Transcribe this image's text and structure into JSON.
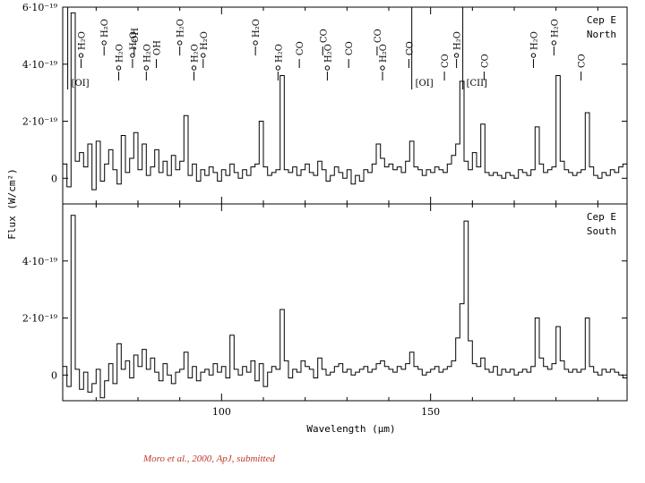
{
  "chart_data": [
    {
      "type": "line",
      "panel": "top",
      "label_lines": [
        "Cep E",
        "North"
      ],
      "xlabel": "Wavelength (μm)",
      "ylabel": "Flux (W/cm²)",
      "xlim": [
        62,
        197
      ],
      "ylim": [
        -9e-20,
        6e-19
      ],
      "yticks": [
        {
          "v": 0,
          "t": "0"
        },
        {
          "v": 2e-19,
          "t": "2·10⁻¹⁹"
        },
        {
          "v": 4e-19,
          "t": "4·10⁻¹⁹"
        },
        {
          "v": 6e-19,
          "t": "6·10⁻¹⁹"
        }
      ],
      "grid": false,
      "line_ids": [
        {
          "x": 63.2,
          "text": "[OI]",
          "kind": "bracket"
        },
        {
          "x": 66.4,
          "text": "H₂O",
          "kind": "o"
        },
        {
          "x": 71.9,
          "text": "H₂O",
          "kind": "o"
        },
        {
          "x": 75.4,
          "text": "H₂O",
          "kind": "o"
        },
        {
          "x": 78.7,
          "text": "H₂O",
          "kind": "o"
        },
        {
          "x": 79.1,
          "text": "OH",
          "kind": "tick"
        },
        {
          "x": 82.0,
          "text": "H₂O",
          "kind": "o"
        },
        {
          "x": 84.4,
          "text": "OH",
          "kind": "tick"
        },
        {
          "x": 90.0,
          "text": "H₂O",
          "kind": "o"
        },
        {
          "x": 93.4,
          "text": "H₂O",
          "kind": "o"
        },
        {
          "x": 95.6,
          "text": "H₂O",
          "kind": "o"
        },
        {
          "x": 108.1,
          "text": "H₂O",
          "kind": "o"
        },
        {
          "x": 113.5,
          "text": "H₂O",
          "kind": "o"
        },
        {
          "x": 118.6,
          "text": "CO",
          "kind": "tick"
        },
        {
          "x": 124.2,
          "text": "CO",
          "kind": "tick"
        },
        {
          "x": 125.3,
          "text": "H₂O",
          "kind": "o"
        },
        {
          "x": 130.4,
          "text": "CO",
          "kind": "tick"
        },
        {
          "x": 137.2,
          "text": "CO",
          "kind": "tick"
        },
        {
          "x": 138.5,
          "text": "H₂O",
          "kind": "o"
        },
        {
          "x": 144.8,
          "text": "CO",
          "kind": "tick"
        },
        {
          "x": 145.5,
          "text": "[OI]",
          "kind": "bracket"
        },
        {
          "x": 153.3,
          "text": "CO",
          "kind": "tick"
        },
        {
          "x": 156.2,
          "text": "H₂O",
          "kind": "o"
        },
        {
          "x": 157.7,
          "text": "[CII]",
          "kind": "bracket"
        },
        {
          "x": 162.8,
          "text": "CO",
          "kind": "tick"
        },
        {
          "x": 174.6,
          "text": "H₂O",
          "kind": "o"
        },
        {
          "x": 179.5,
          "text": "H₂O",
          "kind": "o"
        },
        {
          "x": 186.0,
          "text": "CO",
          "kind": "tick"
        }
      ],
      "series": [
        {
          "style": "histogram",
          "x": [
            62,
            63,
            64,
            65,
            66,
            67,
            68,
            69,
            70,
            71,
            72,
            73,
            74,
            75,
            76,
            77,
            78,
            79,
            80,
            81,
            82,
            83,
            84,
            85,
            86,
            87,
            88,
            89,
            90,
            91,
            92,
            93,
            94,
            95,
            96,
            97,
            98,
            99,
            100,
            101,
            102,
            103,
            104,
            105,
            106,
            107,
            108,
            109,
            110,
            111,
            112,
            113,
            114,
            115,
            116,
            117,
            118,
            119,
            120,
            121,
            122,
            123,
            124,
            125,
            126,
            127,
            128,
            129,
            130,
            131,
            132,
            133,
            134,
            135,
            136,
            137,
            138,
            139,
            140,
            141,
            142,
            143,
            144,
            145,
            146,
            147,
            148,
            149,
            150,
            151,
            152,
            153,
            154,
            155,
            156,
            157,
            158,
            159,
            160,
            161,
            162,
            163,
            164,
            165,
            166,
            167,
            168,
            169,
            170,
            171,
            172,
            173,
            174,
            175,
            176,
            177,
            178,
            179,
            180,
            181,
            182,
            183,
            184,
            185,
            186,
            187,
            188,
            189,
            190,
            191,
            192,
            193,
            194,
            195,
            196
          ],
          "y": [
            5e-20,
            -3e-20,
            5.8e-19,
            6e-20,
            9e-20,
            4e-20,
            1.2e-19,
            -4e-20,
            1.3e-19,
            -1e-20,
            5e-20,
            1e-19,
            3e-20,
            -2e-20,
            1.5e-19,
            2e-20,
            7e-20,
            1.6e-19,
            3e-20,
            1.2e-19,
            1e-20,
            4e-20,
            1e-19,
            2e-20,
            6e-20,
            1e-20,
            8e-20,
            3e-20,
            6e-20,
            2.2e-19,
            1e-20,
            5e-20,
            -1e-20,
            3e-20,
            1e-20,
            4e-20,
            2e-20,
            -1e-20,
            3e-20,
            1e-20,
            5e-20,
            2e-20,
            0.0,
            3e-20,
            1e-20,
            4e-20,
            5e-20,
            2e-19,
            4e-20,
            1e-20,
            2e-20,
            3e-20,
            3.6e-19,
            3e-20,
            2e-20,
            4e-20,
            1e-20,
            3e-20,
            5e-20,
            2e-20,
            1e-20,
            6e-20,
            3e-20,
            -1e-20,
            1e-20,
            4e-20,
            2e-20,
            0.0,
            3e-20,
            -2e-20,
            1e-20,
            -1e-20,
            3e-20,
            2e-20,
            5e-20,
            1.2e-19,
            7e-20,
            4e-20,
            5e-20,
            3e-20,
            4e-20,
            2e-20,
            6e-20,
            1.3e-19,
            4e-20,
            3e-20,
            1e-20,
            3e-20,
            2e-20,
            4e-20,
            3e-20,
            2e-20,
            5e-20,
            8e-20,
            1.2e-19,
            3.4e-19,
            6e-20,
            3e-20,
            9e-20,
            4e-20,
            1.9e-19,
            2e-20,
            1e-20,
            2e-20,
            1e-20,
            0.0,
            2e-20,
            1e-20,
            0.0,
            3e-20,
            2e-20,
            1e-20,
            3e-20,
            1.8e-19,
            5e-20,
            2e-20,
            3e-20,
            4e-20,
            3.6e-19,
            6e-20,
            3e-20,
            2e-20,
            1e-20,
            2e-20,
            3e-20,
            2.3e-19,
            4e-20,
            1e-20,
            0.0,
            2e-20,
            1e-20,
            3e-20,
            2e-20,
            4e-20,
            5e-20
          ]
        }
      ]
    },
    {
      "type": "line",
      "panel": "bottom",
      "label_lines": [
        "Cep E",
        "South"
      ],
      "xlim": [
        62,
        197
      ],
      "ylim": [
        -9e-20,
        6e-19
      ],
      "xticks": [
        {
          "v": 100,
          "t": "100"
        },
        {
          "v": 150,
          "t": "150"
        }
      ],
      "yticks": [
        {
          "v": 0,
          "t": "0"
        },
        {
          "v": 2e-19,
          "t": "2·10⁻¹⁹"
        },
        {
          "v": 4e-19,
          "t": "4·10⁻¹⁹"
        }
      ],
      "grid": false,
      "series": [
        {
          "style": "histogram",
          "x": [
            62,
            63,
            64,
            65,
            66,
            67,
            68,
            69,
            70,
            71,
            72,
            73,
            74,
            75,
            76,
            77,
            78,
            79,
            80,
            81,
            82,
            83,
            84,
            85,
            86,
            87,
            88,
            89,
            90,
            91,
            92,
            93,
            94,
            95,
            96,
            97,
            98,
            99,
            100,
            101,
            102,
            103,
            104,
            105,
            106,
            107,
            108,
            109,
            110,
            111,
            112,
            113,
            114,
            115,
            116,
            117,
            118,
            119,
            120,
            121,
            122,
            123,
            124,
            125,
            126,
            127,
            128,
            129,
            130,
            131,
            132,
            133,
            134,
            135,
            136,
            137,
            138,
            139,
            140,
            141,
            142,
            143,
            144,
            145,
            146,
            147,
            148,
            149,
            150,
            151,
            152,
            153,
            154,
            155,
            156,
            157,
            158,
            159,
            160,
            161,
            162,
            163,
            164,
            165,
            166,
            167,
            168,
            169,
            170,
            171,
            172,
            173,
            174,
            175,
            176,
            177,
            178,
            179,
            180,
            181,
            182,
            183,
            184,
            185,
            186,
            187,
            188,
            189,
            190,
            191,
            192,
            193,
            194,
            195,
            196
          ],
          "y": [
            3e-20,
            -4e-20,
            5.6e-19,
            2e-20,
            -5e-20,
            1e-20,
            -6e-20,
            -3e-20,
            2e-20,
            -8e-20,
            -2e-20,
            4e-20,
            -3e-20,
            1.1e-19,
            2e-20,
            5e-20,
            -1e-20,
            7e-20,
            3e-20,
            9e-20,
            2e-20,
            6e-20,
            1e-20,
            -2e-20,
            4e-20,
            0.0,
            -3e-20,
            1e-20,
            2e-20,
            8e-20,
            -1e-20,
            3e-20,
            -2e-20,
            1e-20,
            2e-20,
            0.0,
            4e-20,
            1e-20,
            3e-20,
            -1e-20,
            1.4e-19,
            2e-20,
            0.0,
            3e-20,
            1e-20,
            5e-20,
            -2e-20,
            4e-20,
            -4e-20,
            1e-20,
            3e-20,
            2e-20,
            2.3e-19,
            5e-20,
            -1e-20,
            2e-20,
            1e-20,
            5e-20,
            3e-20,
            2e-20,
            -1e-20,
            6e-20,
            2e-20,
            0.0,
            1e-20,
            3e-20,
            4e-20,
            1e-20,
            2e-20,
            0.0,
            1e-20,
            2e-20,
            3e-20,
            1e-20,
            2e-20,
            4e-20,
            5e-20,
            3e-20,
            2e-20,
            1e-20,
            3e-20,
            2e-20,
            4e-20,
            8e-20,
            3e-20,
            2e-20,
            0.0,
            1e-20,
            2e-20,
            3e-20,
            1e-20,
            2e-20,
            3e-20,
            5e-20,
            1.3e-19,
            2.5e-19,
            5.4e-19,
            1.2e-19,
            4e-20,
            3e-20,
            6e-20,
            2e-20,
            1e-20,
            3e-20,
            0.0,
            2e-20,
            1e-20,
            2e-20,
            0.0,
            1e-20,
            2e-20,
            1e-20,
            3e-20,
            2e-19,
            6e-20,
            3e-20,
            2e-20,
            4e-20,
            1.7e-19,
            5e-20,
            2e-20,
            1e-20,
            2e-20,
            1e-20,
            2e-20,
            2e-19,
            3e-20,
            1e-20,
            0.0,
            2e-20,
            1e-20,
            2e-20,
            1e-20,
            0.0,
            -1e-20
          ]
        }
      ]
    }
  ],
  "citation": "Moro et al., 2000, ApJ, submitted"
}
